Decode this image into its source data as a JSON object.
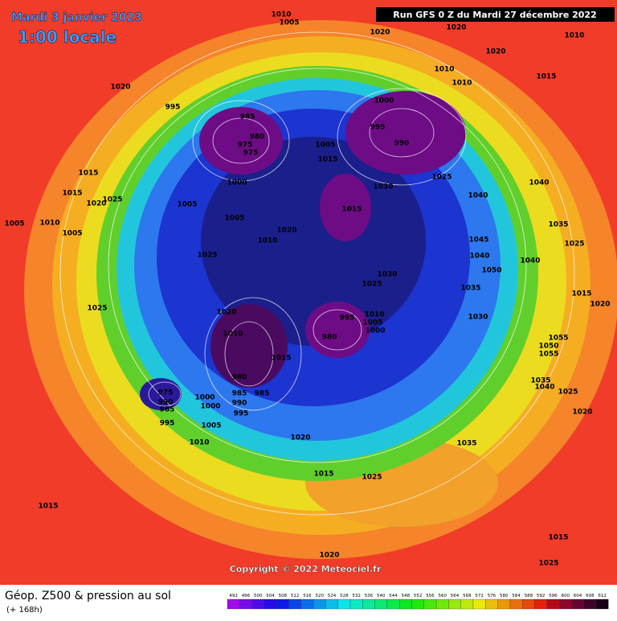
{
  "header": {
    "date": "Mardi 3 janvier 2023",
    "time": "1:00 locale",
    "run": "Run GFS 0 Z du Mardi 27 décembre 2022"
  },
  "copyright": "Copyright © 2022 Meteociel.fr",
  "footer": {
    "title": "Géop. Z500 & pression au sol",
    "subtitle": "(+ 168h)"
  },
  "colorbar": {
    "ticks": [
      492,
      496,
      500,
      504,
      508,
      512,
      516,
      520,
      524,
      528,
      532,
      536,
      540,
      544,
      548,
      552,
      556,
      560,
      564,
      568,
      572,
      576,
      580,
      584,
      588,
      592,
      596,
      600,
      604,
      608,
      612
    ]
  },
  "pressure_labels": [
    1010,
    1005,
    1020,
    1020,
    1010,
    1020,
    1020,
    1010,
    1010,
    1015,
    1000,
    995,
    985,
    980,
    975,
    975,
    990,
    995,
    1005,
    1015,
    1000,
    1025,
    1030,
    1040,
    1040,
    1015,
    1015,
    1020,
    1025,
    1005,
    1010,
    1005,
    1005,
    1005,
    1015,
    1020,
    1010,
    1035,
    1025,
    1045,
    1040,
    1050,
    1040,
    1025,
    1030,
    1025,
    1035,
    1015,
    1020,
    1025,
    1020,
    1010,
    995,
    1010,
    1005,
    1000,
    980,
    1030,
    1055,
    1050,
    1055,
    1015,
    980,
    985,
    990,
    995,
    985,
    1000,
    1000,
    975,
    990,
    985,
    995,
    1005,
    1010,
    1020,
    1035,
    1040,
    1035,
    1025,
    1020,
    1015,
    1025,
    1015,
    1020,
    1015,
    1025
  ]
}
